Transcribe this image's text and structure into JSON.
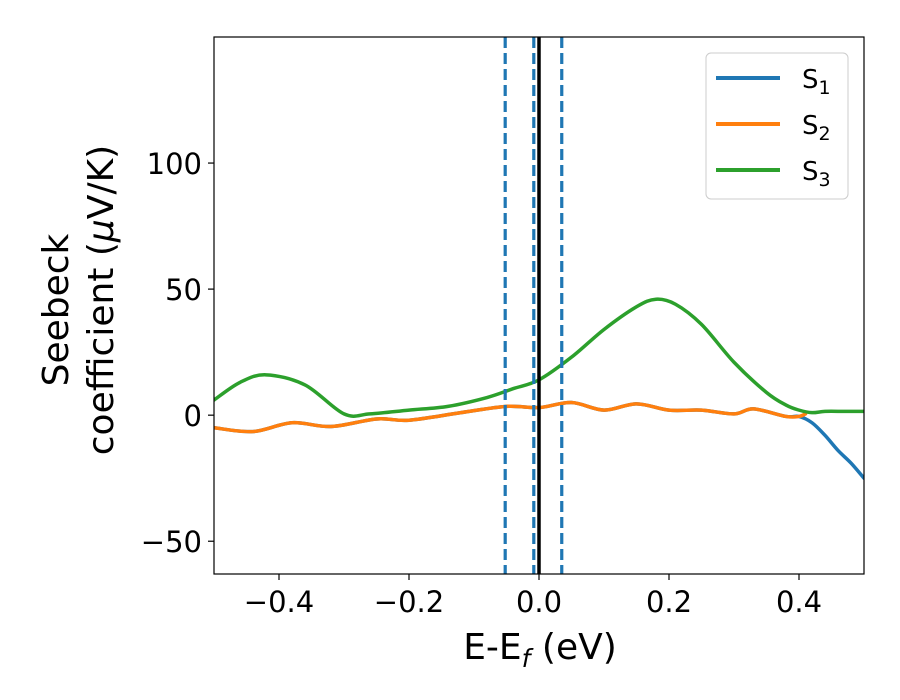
{
  "chart_data": {
    "type": "line",
    "title": "",
    "xlabel": "E-E",
    "xlabel_sub": "f",
    "xlabel_unit": " (eV)",
    "ylabel_line1": "Seebeck",
    "ylabel_line2": "coefficient  (",
    "ylabel_mu": "μ",
    "ylabel_unit": "V/K)",
    "xlim": [
      -0.5,
      0.5
    ],
    "ylim": [
      -63,
      150
    ],
    "xticks": [
      -0.4,
      -0.2,
      0.0,
      0.2,
      0.4
    ],
    "xtick_labels": [
      "−0.4",
      "−0.2",
      "0.0",
      "0.2",
      "0.4"
    ],
    "yticks": [
      -50,
      0,
      50,
      100
    ],
    "ytick_labels": [
      "−50",
      "0",
      "50",
      "100"
    ],
    "grid": false,
    "legend_position": "top-right",
    "series": [
      {
        "name": "S",
        "sub": "1",
        "color": "#1f77b4",
        "x": [
          -0.5,
          -0.44,
          -0.38,
          -0.32,
          -0.25,
          -0.2,
          -0.12,
          -0.05,
          0.0,
          0.05,
          0.1,
          0.15,
          0.2,
          0.25,
          0.3,
          0.33,
          0.38,
          0.4,
          0.42,
          0.44,
          0.46,
          0.48,
          0.5
        ],
        "y": [
          -5,
          -6.5,
          -3,
          -4.5,
          -1.5,
          -2,
          1,
          3.5,
          3,
          5,
          2,
          4.5,
          2,
          2,
          0.5,
          2.5,
          -0.5,
          -0.5,
          -3,
          -8,
          -14,
          -19,
          -25
        ]
      },
      {
        "name": "S",
        "sub": "2",
        "color": "#ff7f0e",
        "x": [
          -0.5,
          -0.44,
          -0.38,
          -0.32,
          -0.25,
          -0.2,
          -0.12,
          -0.05,
          0.0,
          0.05,
          0.1,
          0.15,
          0.2,
          0.25,
          0.3,
          0.33,
          0.38,
          0.4,
          0.41
        ],
        "y": [
          -5,
          -6.5,
          -3,
          -4.5,
          -1.5,
          -2,
          1,
          3.5,
          3,
          5,
          2,
          4.5,
          2,
          2,
          0.5,
          2.5,
          -0.5,
          -0.5,
          0.5
        ]
      },
      {
        "name": "S",
        "sub": "3",
        "color": "#2ca02c",
        "x": [
          -0.5,
          -0.46,
          -0.42,
          -0.36,
          -0.3,
          -0.26,
          -0.2,
          -0.14,
          -0.08,
          -0.04,
          0.0,
          0.05,
          0.1,
          0.15,
          0.18,
          0.21,
          0.25,
          0.3,
          0.35,
          0.38,
          0.4,
          0.42,
          0.44,
          0.47,
          0.5
        ],
        "y": [
          6,
          13,
          16,
          12,
          0.5,
          0.5,
          2,
          3.5,
          7,
          10.5,
          14,
          23,
          34,
          43,
          46,
          44,
          36,
          21,
          9,
          4,
          2,
          1,
          1.5,
          1.5,
          1.5
        ]
      }
    ],
    "vlines": [
      {
        "x": -0.052,
        "style": "dashed",
        "color": "#1f77b4"
      },
      {
        "x": -0.008,
        "style": "dashed",
        "color": "#1f77b4"
      },
      {
        "x": 0.035,
        "style": "dashed",
        "color": "#1f77b4"
      },
      {
        "x": 0.0,
        "style": "solid",
        "color": "#000000"
      }
    ]
  }
}
